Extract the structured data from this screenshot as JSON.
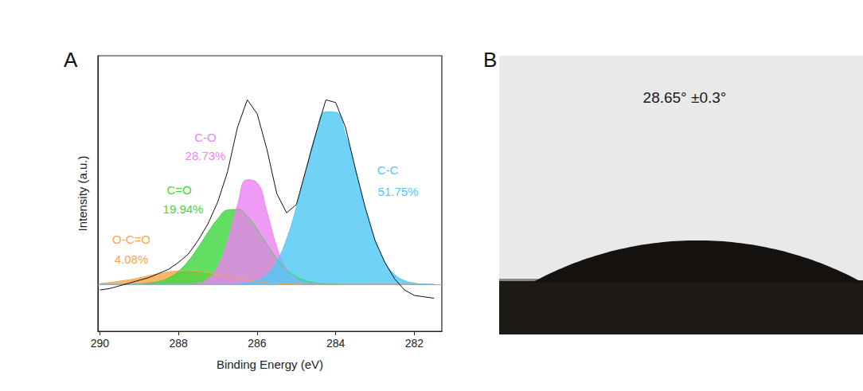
{
  "chart_data": {
    "type": "line",
    "panel_label": "A",
    "x_label": "Binding Energy (eV)",
    "y_label": "Intensity (a.u.)",
    "x": [
      290,
      289.75,
      289.5,
      289.25,
      289,
      288.75,
      288.5,
      288.25,
      288,
      287.75,
      287.5,
      287.25,
      287,
      286.75,
      286.5,
      286.25,
      286,
      285.75,
      285.5,
      285.25,
      285,
      284.75,
      284.5,
      284.25,
      284,
      283.75,
      283.5,
      283.25,
      283,
      282.75,
      282.5,
      282.25,
      282,
      281.75,
      281.5
    ],
    "xlim": [
      290.05,
      281.3
    ],
    "xticks": [
      290,
      288,
      286,
      284,
      282
    ],
    "ylim": [
      0,
      100
    ],
    "yticks": [],
    "tick_labels": "x",
    "grid": false,
    "baseline": 17,
    "spectrum": {
      "type": "line",
      "color": "#111111",
      "values": [
        15,
        15.5,
        16.5,
        17.5,
        18.5,
        19.5,
        21,
        22.5,
        25,
        28,
        33,
        39,
        47,
        58,
        74,
        84,
        79,
        66,
        50,
        43,
        46,
        59,
        72,
        84,
        83,
        74,
        59,
        45,
        33,
        25,
        19,
        15,
        13,
        12.5,
        12
      ]
    },
    "series": [
      {
        "name": "O-C=O",
        "label": "4.08%",
        "type": "area",
        "color": "#f7a64d",
        "values": [
          17.4,
          17.7,
          18.2,
          18.7,
          19.4,
          20.2,
          20.9,
          21.5,
          21.9,
          22,
          21.8,
          21.3,
          20.6,
          19.9,
          19.1,
          18.5,
          18,
          17.6,
          17.4,
          17.2,
          17.1,
          17,
          17,
          17,
          17,
          17,
          17,
          17,
          17,
          17,
          17,
          17,
          17,
          17,
          17
        ]
      },
      {
        "name": "C=O",
        "label": "19.94%",
        "type": "area",
        "color": "#3fd83f",
        "values": [
          17,
          17,
          17,
          17.1,
          17.2,
          17.5,
          18.1,
          19.4,
          21.8,
          25.5,
          30.4,
          35.9,
          40.8,
          44,
          44.2,
          41.7,
          37,
          31.5,
          26.4,
          22.4,
          19.8,
          18.3,
          17.5,
          17.2,
          17.1,
          17,
          17,
          17,
          17,
          17,
          17,
          17,
          17,
          17,
          17
        ]
      },
      {
        "name": "C-O",
        "label": "28.73%",
        "type": "area",
        "color": "#ec84f2",
        "values": [
          17,
          17,
          17,
          17,
          17,
          17,
          17,
          17,
          17,
          17,
          17.4,
          19,
          23.6,
          33,
          45.8,
          55,
          53.9,
          43.3,
          30.7,
          22.3,
          18.5,
          17.3,
          17,
          17,
          17,
          17,
          17,
          17,
          17,
          17,
          17,
          17,
          17,
          17,
          17
        ]
      },
      {
        "name": "C-C",
        "label": "51.75%",
        "type": "area",
        "color": "#4fc8f4",
        "values": [
          17,
          17,
          17,
          17,
          17,
          17,
          17,
          17,
          17,
          17,
          17,
          17,
          17,
          17,
          17.1,
          17.5,
          18.5,
          20.7,
          25.4,
          33.4,
          45.1,
          59,
          71.8,
          79.6,
          79.5,
          71.4,
          58.4,
          44.5,
          33,
          25.1,
          20.6,
          18.4,
          17.5,
          17.1,
          17
        ]
      }
    ]
  },
  "photo": {
    "panel_label": "B",
    "contact_angle": 28.65,
    "label": "28.65° ±0.3°"
  }
}
